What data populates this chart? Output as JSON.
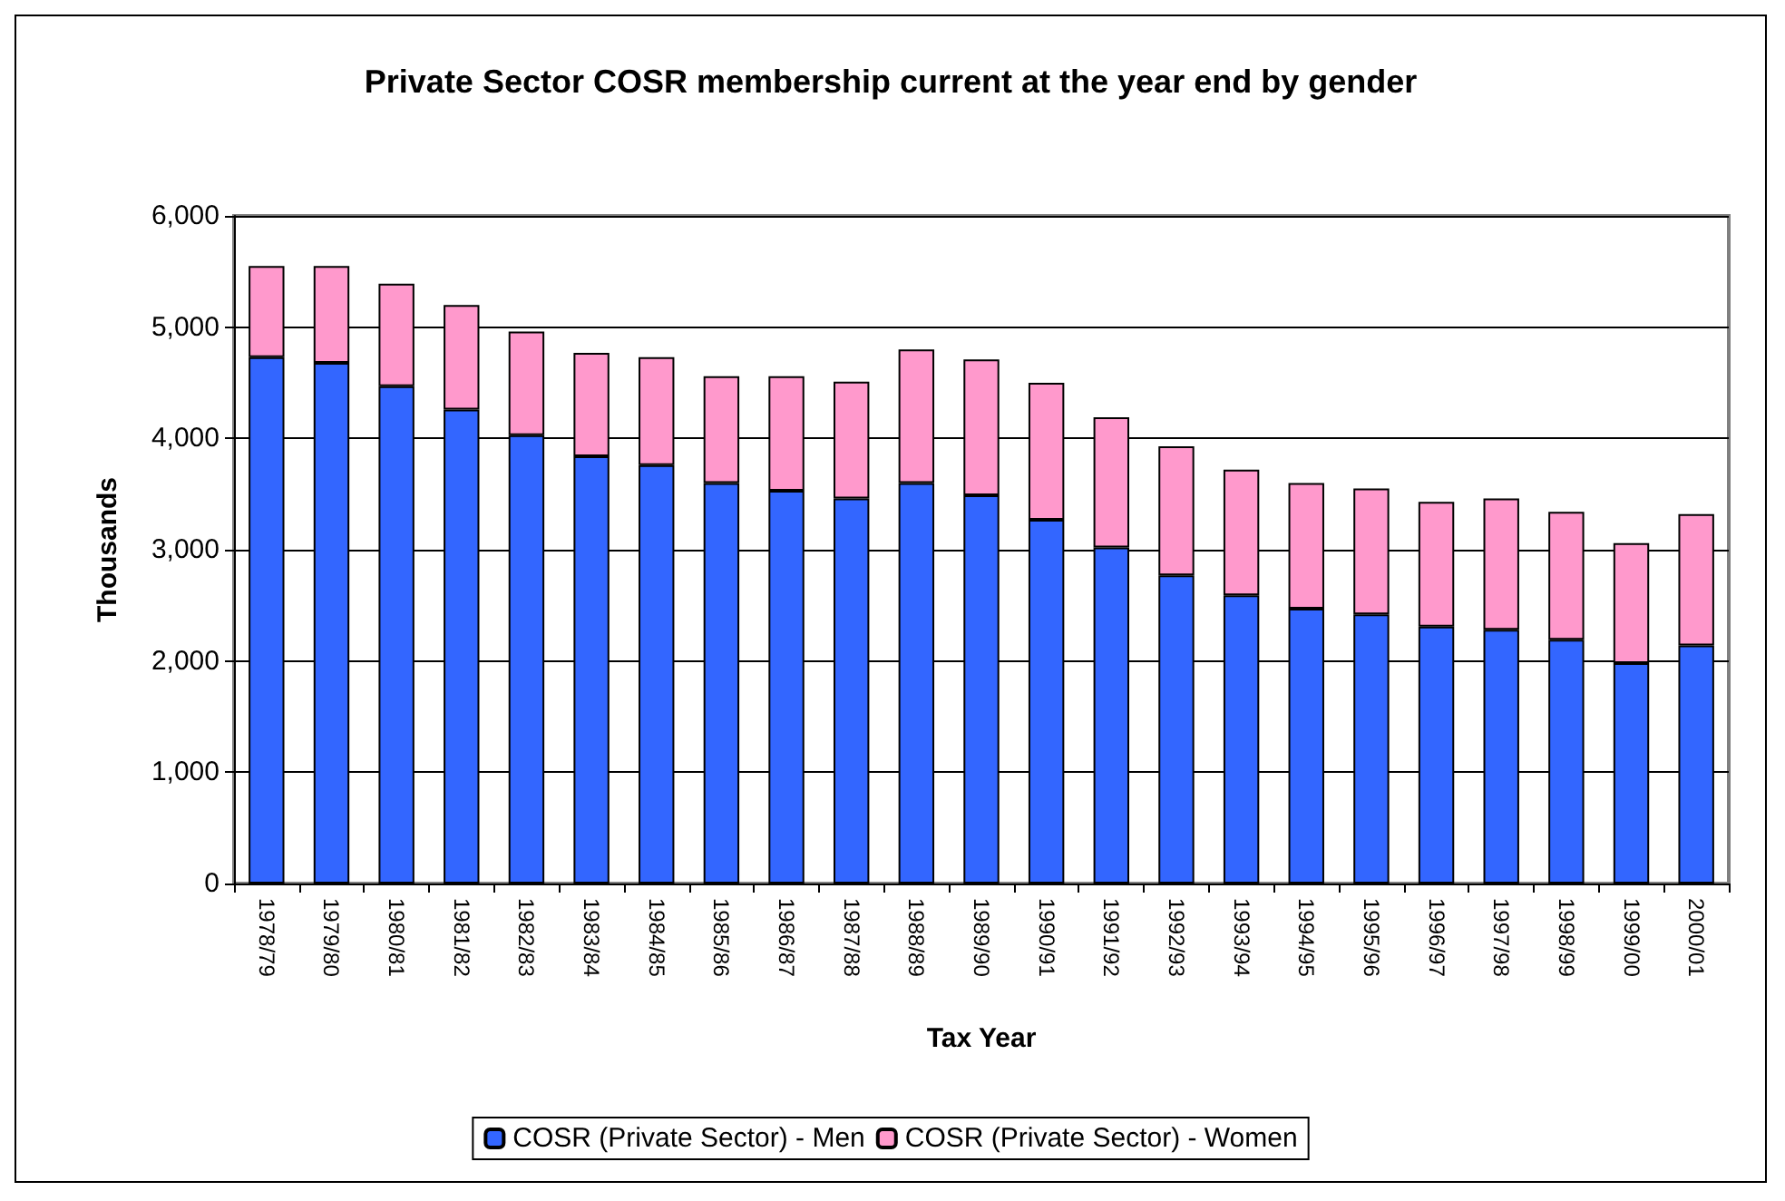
{
  "chart_data": {
    "type": "bar",
    "title": "Private Sector COSR membership current at the year end by gender",
    "xlabel": "Tax Year",
    "ylabel": "Thousands",
    "categories": [
      "1978/79",
      "1979/80",
      "1980/81",
      "1981/82",
      "1982/83",
      "1983/84",
      "1984/85",
      "1985/86",
      "1986/87",
      "1987/88",
      "1988/89",
      "1989/90",
      "1990/91",
      "1991/92",
      "1992/93",
      "1993/94",
      "1994/95",
      "1995/96",
      "1996/97",
      "1997/98",
      "1998/99",
      "1999/00",
      "2000/01"
    ],
    "series": [
      {
        "name": "COSR (Private Sector) - Men",
        "color": "#3366ff",
        "values": [
          4730,
          4680,
          4470,
          4260,
          4030,
          3840,
          3760,
          3600,
          3530,
          3460,
          3600,
          3490,
          3270,
          3020,
          2770,
          2590,
          2470,
          2420,
          2310,
          2280,
          2190,
          1980,
          2140
        ]
      },
      {
        "name": "COSR (Private Sector) - Women",
        "color": "#ff99cc",
        "values": [
          820,
          870,
          920,
          940,
          930,
          930,
          970,
          960,
          1030,
          1050,
          1200,
          1220,
          1230,
          1170,
          1160,
          1130,
          1130,
          1130,
          1120,
          1180,
          1150,
          1080,
          1180
        ]
      }
    ],
    "stacked": true,
    "ylim": [
      0,
      6000
    ],
    "yticks": [
      0,
      {
        "value": 1000,
        "label": "1,000"
      },
      {
        "value": 2000,
        "label": "2,000"
      },
      {
        "value": 3000,
        "label": "3,000"
      },
      {
        "value": 4000,
        "label": "4,000"
      },
      {
        "value": 5000,
        "label": "5,000"
      },
      {
        "value": 6000,
        "label": "6,000"
      }
    ],
    "grid": "y",
    "legend": "bottom"
  }
}
